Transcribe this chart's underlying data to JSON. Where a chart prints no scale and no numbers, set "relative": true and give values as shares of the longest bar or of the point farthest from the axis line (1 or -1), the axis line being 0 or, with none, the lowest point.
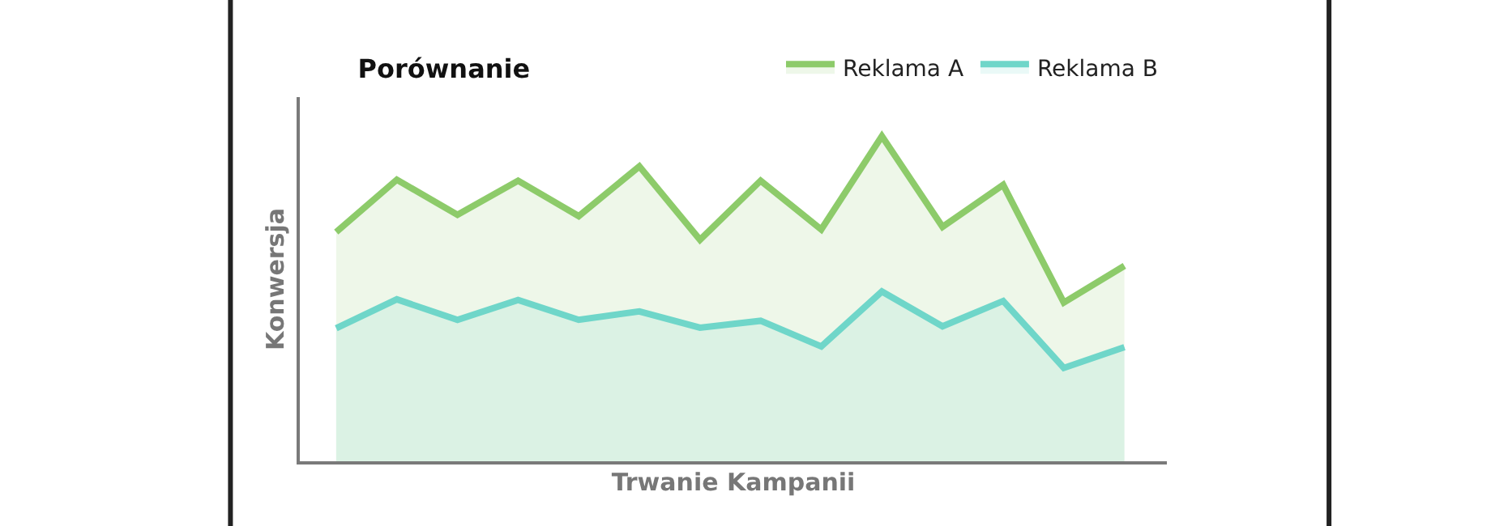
{
  "chart_data": {
    "type": "area",
    "title": "Porównanie",
    "xlabel": "Trwanie Kampanii",
    "ylabel": "Konwersja",
    "relative": true,
    "legend": "top right",
    "marker": "none",
    "line_style": "solid",
    "categories": [
      null,
      null,
      null,
      null,
      null,
      null,
      null,
      null,
      null,
      null,
      null,
      null,
      null,
      null
    ],
    "series": [
      {
        "name": "Reklama A",
        "color": "#8dcb6a",
        "values": [
          0.705,
          0.866,
          0.758,
          0.863,
          0.754,
          0.907,
          0.681,
          0.863,
          0.713,
          1,
          0.721,
          0.85,
          0.488,
          0.601
        ]
      },
      {
        "name": "Reklama B",
        "color": "#6fd6c9",
        "values": [
          0.409,
          0.498,
          0.435,
          0.496,
          0.435,
          0.461,
          0.411,
          0.432,
          0.353,
          0.522,
          0.415,
          0.493,
          0.287,
          0.351
        ]
      }
    ]
  }
}
